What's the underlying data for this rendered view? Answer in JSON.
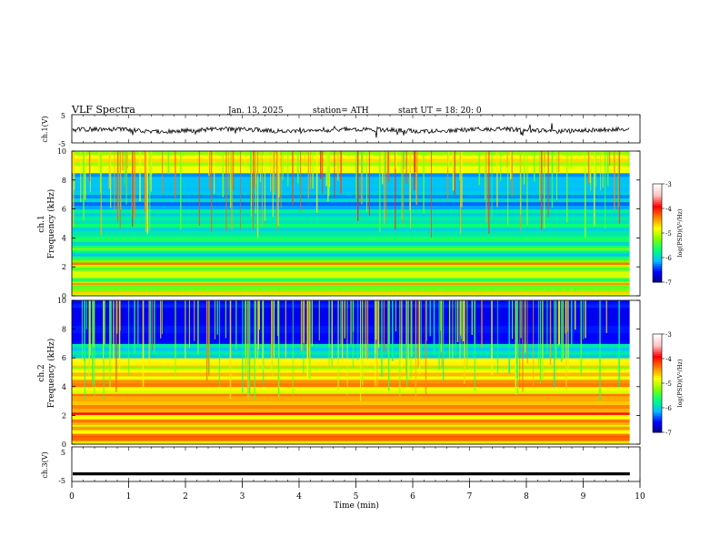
{
  "header": {
    "title": "VLF  Spectra",
    "date": "Jan. 13, 2025",
    "station": "station= ATH",
    "start": "start  UT  =    18: 20: 0"
  },
  "chart_data": [
    {
      "panel": "ch1-waveform",
      "type": "line",
      "ylabel": "ch.1(V)",
      "ylim": [
        -5,
        5
      ],
      "yticks": [
        "5",
        "-5"
      ],
      "description_values": {
        "baseline_V": 0,
        "noise_amplitude_V": 0.6,
        "spike_amplitude_V": 2.5
      }
    },
    {
      "panel": "ch1-spectrogram",
      "type": "heatmap",
      "ylabel_line1": "ch.1",
      "ylabel_line2": "Frequency  (kHz)",
      "ylim": [
        0,
        10
      ],
      "yticks": [
        "0",
        "2",
        "4",
        "6",
        "8",
        "10"
      ],
      "bands_khz": [
        {
          "f": 0.2,
          "level": -4.6
        },
        {
          "f": 0.8,
          "level": -4.4
        },
        {
          "f": 1.6,
          "level": -4.9
        },
        {
          "f": 2.2,
          "level": -4.3
        },
        {
          "f": 3.2,
          "level": -5.2
        },
        {
          "f": 4.0,
          "level": -5.6
        },
        {
          "f": 5.4,
          "level": -5.8
        }
      ],
      "colorbar": {
        "label": "log(PSD)(V²/Hz)",
        "ticks": [
          "-3",
          "-4",
          "-5",
          "-6",
          "-7"
        ],
        "range": [
          -7,
          -3
        ]
      }
    },
    {
      "panel": "ch2-spectrogram",
      "type": "heatmap",
      "ylabel_line1": "ch.2",
      "ylabel_line2": "Frequency  (kHz)",
      "ylim": [
        0,
        10
      ],
      "yticks": [
        "0",
        "2",
        "4",
        "6",
        "8",
        "10"
      ],
      "bands_khz": [
        {
          "f": 0.5,
          "level": -4.2
        },
        {
          "f": 1.4,
          "level": -4.5
        },
        {
          "f": 2.1,
          "level": -3.9
        },
        {
          "f": 3.4,
          "level": -4.3
        },
        {
          "f": 4.6,
          "level": -4.8
        },
        {
          "f": 5.3,
          "level": -5.2
        }
      ],
      "colorbar": {
        "label": "log(PSD)(V²/Hz)",
        "ticks": [
          "-3",
          "-4",
          "-5",
          "-6",
          "-7"
        ],
        "range": [
          -7,
          -3
        ]
      }
    },
    {
      "panel": "ch3-waveform",
      "type": "line",
      "ylabel": "ch.3(V)",
      "ylim": [
        -5,
        5
      ],
      "yticks": [
        "5",
        "-5"
      ],
      "description_values": {
        "baseline_V": -2.8
      }
    }
  ],
  "xaxis": {
    "label": "Time  (min)",
    "range": [
      0,
      10
    ],
    "ticks": [
      "0",
      "1",
      "2",
      "3",
      "4",
      "5",
      "6",
      "7",
      "8",
      "9",
      "10"
    ],
    "data_end_min": 9.82
  },
  "colors": {
    "jet": [
      "#000080",
      "#0000ff",
      "#00bfff",
      "#00ff80",
      "#80ff00",
      "#ffff00",
      "#ff8000",
      "#ff0000",
      "#ffc0c0",
      "#ffffff"
    ]
  }
}
